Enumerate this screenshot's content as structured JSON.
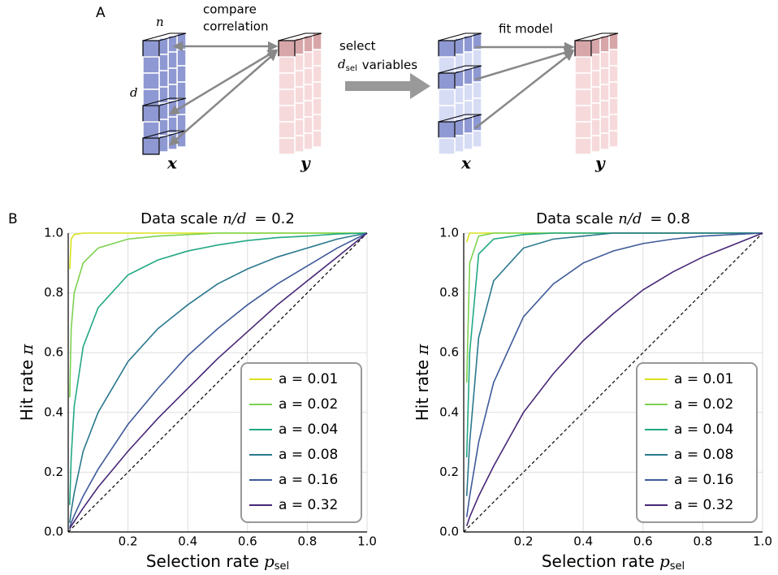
{
  "panel_labels": [
    "A",
    "B"
  ],
  "diagram": {
    "n": "n",
    "compare": "compare",
    "correlation": "correlation",
    "d": "d",
    "x_left": "x",
    "y_left": "y",
    "select": "select",
    "d_sel": "d",
    "d_sel_subscript": "sel",
    "variables": "variables",
    "fit_model": "fit model",
    "x_right": "x",
    "y_right": "y"
  },
  "chart_data": [
    {
      "type": "line",
      "title": "Data scale",
      "title_math": "n/d",
      "title_value": "= 0.2",
      "xlabel": "Selection rate",
      "xlabel_math": "p",
      "xlabel_subscript": "sel",
      "ylabel": "Hit rate",
      "ylabel_math": "π",
      "xlim": [
        0,
        1
      ],
      "ylim": [
        0,
        1
      ],
      "xticks": [
        0.2,
        0.4,
        0.6,
        0.8,
        {
          "value": 1,
          "label": "1.0"
        }
      ],
      "yticks": [
        {
          "value": 0,
          "label": "0.0"
        },
        0.2,
        0.4,
        0.6,
        0.8,
        {
          "value": 1,
          "label": "1.0"
        }
      ],
      "grid": true,
      "legend": "lower right",
      "diagonal": true,
      "x": [
        0.005,
        0.01,
        0.02,
        0.05,
        0.1,
        0.2,
        0.3,
        0.4,
        0.5,
        0.6,
        0.7,
        0.8,
        0.9,
        1.0
      ],
      "series": [
        {
          "name": "a = 0.01",
          "color": "#d9e21c",
          "values": [
            0.88,
            0.98,
            0.995,
            1,
            1,
            1,
            1,
            1,
            1,
            1,
            1,
            1,
            1,
            1
          ]
        },
        {
          "name": "a = 0.02",
          "color": "#7cd250",
          "values": [
            0.45,
            0.68,
            0.8,
            0.9,
            0.95,
            0.98,
            0.99,
            0.995,
            1,
            1,
            1,
            1,
            1,
            1
          ]
        },
        {
          "name": "a = 0.04",
          "color": "#22a884",
          "values": [
            0.09,
            0.25,
            0.42,
            0.62,
            0.75,
            0.86,
            0.91,
            0.94,
            0.96,
            0.975,
            0.985,
            0.99,
            0.997,
            1
          ]
        },
        {
          "name": "a = 0.08",
          "color": "#2a788e",
          "values": [
            0.03,
            0.07,
            0.13,
            0.27,
            0.4,
            0.57,
            0.68,
            0.76,
            0.83,
            0.88,
            0.92,
            0.95,
            0.98,
            1
          ]
        },
        {
          "name": "a = 0.16",
          "color": "#3e5a99",
          "values": [
            0.015,
            0.03,
            0.055,
            0.12,
            0.21,
            0.36,
            0.48,
            0.59,
            0.68,
            0.76,
            0.83,
            0.89,
            0.95,
            1
          ]
        },
        {
          "name": "a = 0.32",
          "color": "#472777",
          "values": [
            0.01,
            0.02,
            0.035,
            0.08,
            0.15,
            0.27,
            0.38,
            0.48,
            0.58,
            0.67,
            0.76,
            0.84,
            0.92,
            1
          ]
        }
      ]
    },
    {
      "type": "line",
      "title": "Data scale",
      "title_math": "n/d",
      "title_value": "= 0.8",
      "xlabel": "Selection rate",
      "xlabel_math": "p",
      "xlabel_subscript": "sel",
      "ylabel": "Hit rate",
      "ylabel_math": "π",
      "xlim": [
        0,
        1
      ],
      "ylim": [
        0,
        1
      ],
      "xticks": [
        0.2,
        0.4,
        0.6,
        0.8,
        {
          "value": 1,
          "label": "1.0"
        }
      ],
      "yticks": [
        {
          "value": 0,
          "label": "0.0"
        },
        0.2,
        0.4,
        0.6,
        0.8,
        {
          "value": 1,
          "label": "1.0"
        }
      ],
      "grid": true,
      "legend": "lower right",
      "diagonal": true,
      "x": [
        0.01,
        0.02,
        0.05,
        0.1,
        0.2,
        0.3,
        0.4,
        0.5,
        0.6,
        0.7,
        0.8,
        0.9,
        1.0
      ],
      "series": [
        {
          "name": "a = 0.01",
          "color": "#d9e21c",
          "values": [
            0.97,
            1,
            1,
            1,
            1,
            1,
            1,
            1,
            1,
            1,
            1,
            1,
            1
          ]
        },
        {
          "name": "a = 0.02",
          "color": "#7cd250",
          "values": [
            0.5,
            0.9,
            0.99,
            1,
            1,
            1,
            1,
            1,
            1,
            1,
            1,
            1,
            1
          ]
        },
        {
          "name": "a = 0.04",
          "color": "#22a884",
          "values": [
            0.25,
            0.6,
            0.93,
            0.98,
            0.995,
            1,
            1,
            1,
            1,
            1,
            1,
            1,
            1
          ]
        },
        {
          "name": "a = 0.08",
          "color": "#2a788e",
          "values": [
            0.12,
            0.3,
            0.65,
            0.84,
            0.95,
            0.98,
            0.99,
            1,
            1,
            1,
            1,
            1,
            1
          ]
        },
        {
          "name": "a = 0.16",
          "color": "#3e5a99",
          "values": [
            0.05,
            0.12,
            0.3,
            0.5,
            0.72,
            0.83,
            0.9,
            0.94,
            0.965,
            0.98,
            0.99,
            0.995,
            1
          ]
        },
        {
          "name": "a = 0.32",
          "color": "#472777",
          "values": [
            0.02,
            0.05,
            0.12,
            0.22,
            0.4,
            0.53,
            0.64,
            0.73,
            0.81,
            0.87,
            0.92,
            0.96,
            1
          ]
        }
      ]
    }
  ]
}
